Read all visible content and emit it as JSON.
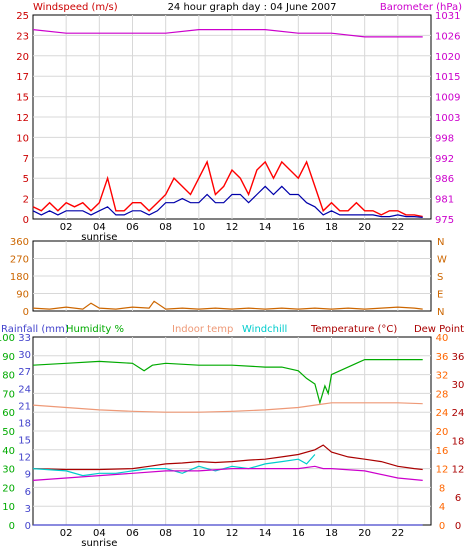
{
  "chart_data": [
    {
      "type": "line",
      "title": "24 hour graph day : 04 June 2007",
      "left_label": "Windspeed (m/s)",
      "right_label": "Barometer (hPa)",
      "colors": {
        "left_label": "#cc0000",
        "right_label": "#cc00cc",
        "gust": "#ff0000",
        "avg": "#0000aa",
        "baro": "#cc00cc"
      },
      "x_ticks": [
        "02",
        "04",
        "06",
        "08",
        "10",
        "12",
        "14",
        "16",
        "18",
        "20",
        "22"
      ],
      "sunrise_label": "sunrise",
      "sunrise_hour": 4,
      "y_left_ticks": [
        "0",
        "2",
        "5",
        "7",
        "10",
        "12",
        "15",
        "17",
        "20",
        "23",
        "25"
      ],
      "y_left_range": [
        0,
        25
      ],
      "y_right_ticks": [
        "975",
        "981",
        "986",
        "992",
        "998",
        "1003",
        "1009",
        "1015",
        "1020",
        "1026",
        "1031"
      ],
      "y_right_range": [
        975,
        1031
      ],
      "grid": true,
      "series": [
        {
          "key": "gust",
          "color": "#ff0000",
          "x": [
            0,
            0.5,
            1,
            1.5,
            2,
            2.5,
            3,
            3.5,
            4,
            4.5,
            5,
            5.5,
            6,
            6.5,
            7,
            7.5,
            8,
            8.5,
            9,
            9.5,
            10,
            10.5,
            11,
            11.5,
            12,
            12.5,
            13,
            13.5,
            14,
            14.5,
            15,
            15.5,
            16,
            16.5,
            17,
            17.5,
            18,
            18.5,
            19,
            19.5,
            20,
            20.5,
            21,
            21.5,
            22,
            22.5,
            23,
            23.5
          ],
          "values": [
            1.5,
            1,
            2,
            1,
            2,
            1.5,
            2,
            1,
            2,
            5,
            1,
            1,
            2,
            2,
            1,
            2,
            3,
            5,
            4,
            3,
            5,
            7,
            3,
            4,
            6,
            5,
            3,
            6,
            7,
            5,
            7,
            6,
            5,
            7,
            4,
            1,
            2,
            1,
            1,
            2,
            1,
            1,
            0.5,
            1,
            1,
            0.5,
            0.5,
            0.3
          ]
        },
        {
          "key": "avg",
          "color": "#0000aa",
          "x": [
            0,
            0.5,
            1,
            1.5,
            2,
            2.5,
            3,
            3.5,
            4,
            4.5,
            5,
            5.5,
            6,
            6.5,
            7,
            7.5,
            8,
            8.5,
            9,
            9.5,
            10,
            10.5,
            11,
            11.5,
            12,
            12.5,
            13,
            13.5,
            14,
            14.5,
            15,
            15.5,
            16,
            16.5,
            17,
            17.5,
            18,
            18.5,
            19,
            19.5,
            20,
            20.5,
            21,
            21.5,
            22,
            22.5,
            23,
            23.5
          ],
          "values": [
            1,
            0.5,
            1,
            0.5,
            1,
            1,
            1,
            0.5,
            1,
            1.5,
            0.5,
            0.5,
            1,
            1,
            0.5,
            1,
            2,
            2,
            2.5,
            2,
            2,
            3,
            2,
            2,
            3,
            3,
            2,
            3,
            4,
            3,
            4,
            3,
            3,
            2,
            1.5,
            0.5,
            1,
            0.5,
            0.5,
            0.5,
            0.5,
            0.5,
            0.3,
            0.3,
            0.5,
            0.3,
            0.3,
            0.2
          ]
        },
        {
          "key": "baro",
          "color": "#cc00cc",
          "axis": "right",
          "x": [
            0,
            2,
            4,
            6,
            8,
            10,
            12,
            14,
            16,
            18,
            20,
            22,
            23.5
          ],
          "values": [
            1027,
            1026,
            1026,
            1026,
            1026,
            1027,
            1027,
            1027,
            1026,
            1026,
            1025,
            1025,
            1025
          ]
        }
      ]
    },
    {
      "type": "line",
      "colors": {
        "series": "#cc6600",
        "axis_text": "#cc6600"
      },
      "x_ticks": [
        "02",
        "04",
        "06",
        "08",
        "10",
        "12",
        "14",
        "16",
        "18",
        "20",
        "22"
      ],
      "y_left_ticks": [
        "0",
        "90",
        "180",
        "270",
        "360"
      ],
      "y_left_range": [
        0,
        360
      ],
      "y_right_ticks": [
        "N",
        "E",
        "S",
        "W",
        "N"
      ],
      "grid": true,
      "series": [
        {
          "key": "wind_direction",
          "color": "#cc6600",
          "x": [
            0,
            1,
            2,
            3,
            3.5,
            4,
            5,
            6,
            7,
            7.3,
            8,
            9,
            10,
            11,
            12,
            13,
            14,
            15,
            16,
            17,
            18,
            19,
            20,
            21,
            22,
            23,
            23.5
          ],
          "values": [
            15,
            10,
            20,
            10,
            40,
            15,
            10,
            20,
            15,
            50,
            10,
            15,
            10,
            15,
            10,
            15,
            10,
            15,
            10,
            15,
            10,
            15,
            10,
            15,
            20,
            15,
            10
          ]
        }
      ]
    },
    {
      "type": "line",
      "header_labels": {
        "rainfall": "Rainfall (mm)",
        "humidity": "Humidity %",
        "indoor": "Indoor temp",
        "windchill": "Windchill",
        "temperature": "Temperature (°C)",
        "dewpoint": "Dew Point"
      },
      "colors": {
        "rainfall": "#4444cc",
        "humidity": "#00aa00",
        "indoor": "#ee9977",
        "windchill": "#00cccc",
        "temperature": "#aa0000",
        "dewpoint": "#cc00cc",
        "right_ticks_1": "#ff6600",
        "right_ticks_2": "#aa0000"
      },
      "x_ticks": [
        "02",
        "04",
        "06",
        "08",
        "10",
        "12",
        "14",
        "16",
        "18",
        "20",
        "22"
      ],
      "sunrise_label": "sunrise",
      "sunrise_hour": 4,
      "y_rain_ticks": [
        "0",
        "3",
        "6",
        "9",
        "12",
        "15",
        "18",
        "21",
        "24",
        "27",
        "30",
        "33"
      ],
      "y_rain_range": [
        0,
        33
      ],
      "y_hum_ticks": [
        "0",
        "10",
        "20",
        "30",
        "40",
        "50",
        "60",
        "70",
        "80",
        "90",
        "100"
      ],
      "y_hum_range": [
        0,
        100
      ],
      "y_right1_ticks": [
        "0",
        "4",
        "8",
        "12",
        "16",
        "20",
        "24",
        "28",
        "32",
        "36",
        "40"
      ],
      "y_right2_ticks": [
        "0",
        "6",
        "12",
        "18",
        "24",
        "30",
        "36"
      ],
      "y_temp_range": [
        0,
        40
      ],
      "grid": true,
      "series": [
        {
          "key": "humidity",
          "color": "#00aa00",
          "x": [
            0,
            2,
            4,
            6,
            6.7,
            7.2,
            8,
            10,
            12,
            14,
            15,
            16,
            16.5,
            17,
            17.3,
            17.6,
            17.8,
            18,
            18.5,
            19,
            19.5,
            20,
            22,
            23.5
          ],
          "values": [
            85,
            86,
            87,
            86,
            82,
            85,
            86,
            85,
            85,
            84,
            84,
            82,
            78,
            75,
            65,
            74,
            70,
            80,
            82,
            84,
            86,
            88,
            88,
            88
          ]
        },
        {
          "key": "indoor",
          "color": "#ee9977",
          "x": [
            0,
            2,
            4,
            6,
            8,
            10,
            12,
            14,
            16,
            17,
            18,
            20,
            22,
            23.5
          ],
          "values": [
            25.5,
            25,
            24.5,
            24.2,
            24,
            24,
            24.2,
            24.5,
            25,
            25.5,
            26,
            26,
            26,
            25.8
          ]
        },
        {
          "key": "temperature",
          "color": "#aa0000",
          "x": [
            0,
            2,
            4,
            6,
            7,
            8,
            9,
            10,
            11,
            12,
            13,
            14,
            15,
            16,
            17,
            17.5,
            18,
            19,
            20,
            21,
            22,
            23,
            23.5
          ],
          "values": [
            12,
            11.8,
            11.8,
            12,
            12.5,
            13,
            13.2,
            13.5,
            13.3,
            13.5,
            13.8,
            14,
            14.5,
            15,
            16,
            17,
            15.5,
            14.5,
            14,
            13.5,
            12.5,
            12,
            11.8
          ]
        },
        {
          "key": "windchill",
          "color": "#00cccc",
          "x": [
            0,
            2,
            3,
            4,
            5,
            6,
            7,
            8,
            9,
            10,
            11,
            12,
            13,
            14,
            15,
            16,
            16.5,
            17
          ],
          "values": [
            12,
            11.5,
            10.5,
            11,
            11,
            11.5,
            12,
            12,
            11,
            12.5,
            11.5,
            12.5,
            12,
            13,
            13.5,
            14,
            13,
            15
          ]
        },
        {
          "key": "dewpoint",
          "color": "#cc00cc",
          "x": [
            0,
            2,
            4,
            6,
            8,
            10,
            12,
            14,
            16,
            17,
            17.5,
            18,
            20,
            22,
            23.5
          ],
          "values": [
            9.5,
            10,
            10.5,
            11,
            11.5,
            11.5,
            12,
            12,
            12,
            12.5,
            12,
            12,
            11.5,
            10,
            9.5
          ]
        },
        {
          "key": "rainfall",
          "color": "#4444cc",
          "x": [
            0,
            23.5
          ],
          "values": [
            0,
            0
          ]
        }
      ]
    }
  ]
}
